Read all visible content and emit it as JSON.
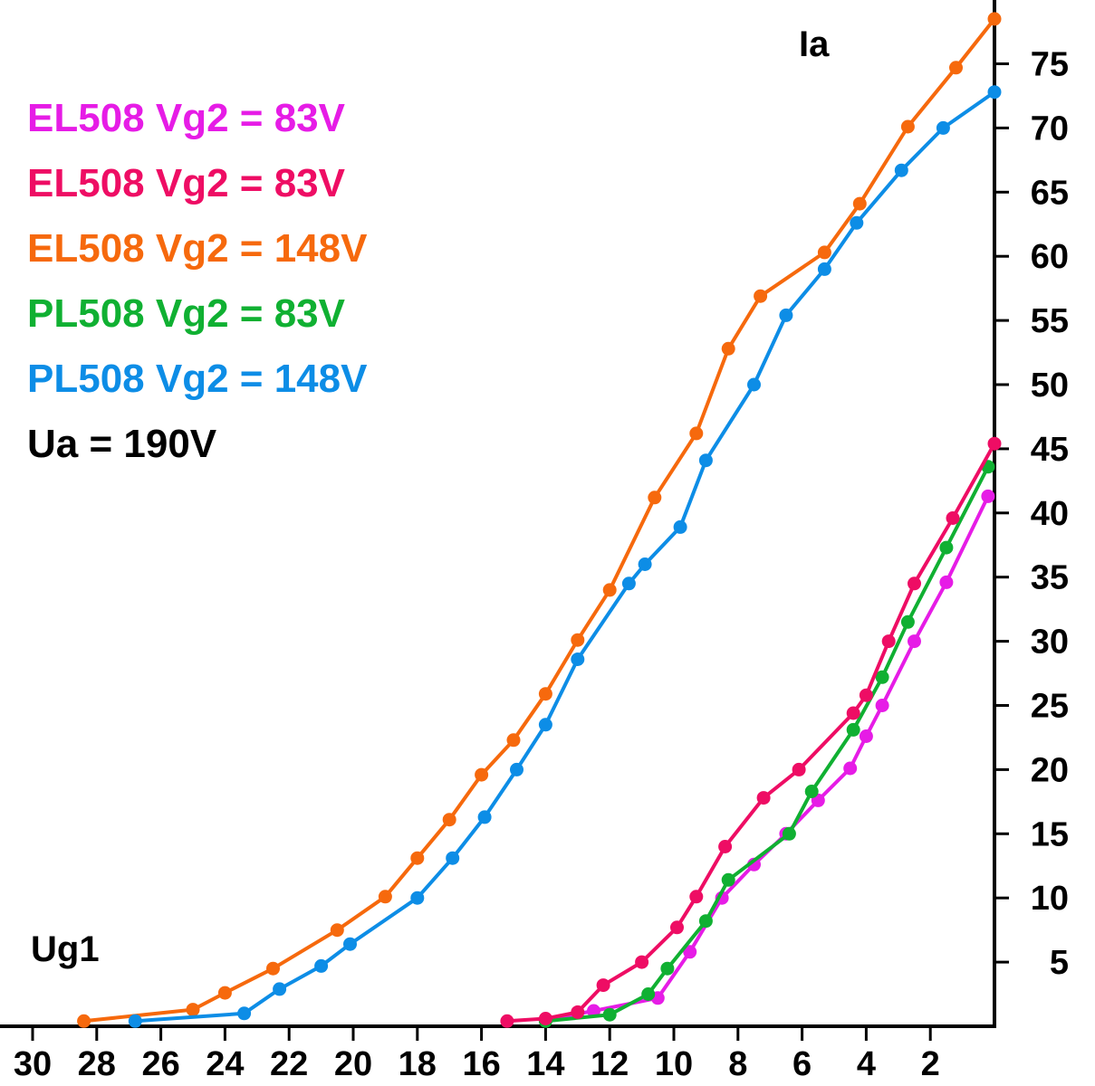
{
  "chart_data": {
    "type": "line",
    "title": "",
    "xlabel": "Ug1",
    "ylabel": "Ia",
    "x_axis_reversed": true,
    "xlim": [
      31,
      0
    ],
    "ylim": [
      0,
      78
    ],
    "x_ticks": [
      30,
      28,
      26,
      24,
      22,
      20,
      18,
      16,
      14,
      12,
      10,
      8,
      6,
      4,
      2
    ],
    "y_ticks": [
      5,
      10,
      15,
      20,
      25,
      30,
      35,
      40,
      45,
      50,
      55,
      60,
      65,
      70,
      75
    ],
    "annotation": "Ua = 190V",
    "series": [
      {
        "name": "EL508 Vg2 = 83V",
        "color": "#e61ce6",
        "points": [
          [
            14.0,
            0.5
          ],
          [
            12.5,
            1.2
          ],
          [
            10.5,
            2.2
          ],
          [
            9.5,
            5.8
          ],
          [
            8.5,
            10.0
          ],
          [
            7.5,
            12.6
          ],
          [
            6.5,
            15.0
          ],
          [
            5.5,
            17.6
          ],
          [
            4.5,
            20.1
          ],
          [
            4.0,
            22.6
          ],
          [
            3.5,
            25.0
          ],
          [
            2.5,
            30.0
          ],
          [
            1.5,
            34.6
          ],
          [
            0.2,
            41.3
          ]
        ]
      },
      {
        "name": "EL508 Vg2 = 83V",
        "color": "#ee0d64",
        "points": [
          [
            15.2,
            0.4
          ],
          [
            14.0,
            0.6
          ],
          [
            13.0,
            1.1
          ],
          [
            12.2,
            3.2
          ],
          [
            11.0,
            5.0
          ],
          [
            9.9,
            7.7
          ],
          [
            9.3,
            10.1
          ],
          [
            8.4,
            14.0
          ],
          [
            7.2,
            17.8
          ],
          [
            6.1,
            20.0
          ],
          [
            4.4,
            24.4
          ],
          [
            4.0,
            25.8
          ],
          [
            3.3,
            30.0
          ],
          [
            2.5,
            34.5
          ],
          [
            1.3,
            39.6
          ],
          [
            0.0,
            45.4
          ]
        ]
      },
      {
        "name": "EL508 Vg2 = 148V",
        "color": "#f6690d",
        "points": [
          [
            28.4,
            0.4
          ],
          [
            25.0,
            1.3
          ],
          [
            24.0,
            2.6
          ],
          [
            22.5,
            4.5
          ],
          [
            20.5,
            7.5
          ],
          [
            19.0,
            10.1
          ],
          [
            18.0,
            13.1
          ],
          [
            17.0,
            16.1
          ],
          [
            16.0,
            19.6
          ],
          [
            15.0,
            22.3
          ],
          [
            14.0,
            25.9
          ],
          [
            13.0,
            30.1
          ],
          [
            12.0,
            34.0
          ],
          [
            10.6,
            41.2
          ],
          [
            9.3,
            46.2
          ],
          [
            8.3,
            52.8
          ],
          [
            7.3,
            56.9
          ],
          [
            5.3,
            60.3
          ],
          [
            4.2,
            64.1
          ],
          [
            2.7,
            70.1
          ],
          [
            1.2,
            74.7
          ],
          [
            0.0,
            78.5
          ]
        ]
      },
      {
        "name": "PL508 Vg2 = 83V",
        "color": "#10b032",
        "points": [
          [
            14.0,
            0.4
          ],
          [
            12.0,
            0.9
          ],
          [
            10.8,
            2.5
          ],
          [
            10.2,
            4.5
          ],
          [
            9.0,
            8.2
          ],
          [
            8.3,
            11.4
          ],
          [
            6.4,
            15.0
          ],
          [
            5.7,
            18.3
          ],
          [
            4.4,
            23.1
          ],
          [
            3.5,
            27.2
          ],
          [
            2.7,
            31.5
          ],
          [
            1.5,
            37.3
          ],
          [
            0.2,
            43.6
          ]
        ]
      },
      {
        "name": "PL508 Vg2 = 148V",
        "color": "#0d8de6",
        "points": [
          [
            26.8,
            0.4
          ],
          [
            23.4,
            1.0
          ],
          [
            22.3,
            2.9
          ],
          [
            21.0,
            4.7
          ],
          [
            20.1,
            6.4
          ],
          [
            18.0,
            10.0
          ],
          [
            16.9,
            13.1
          ],
          [
            15.9,
            16.3
          ],
          [
            14.9,
            20.0
          ],
          [
            14.0,
            23.5
          ],
          [
            13.0,
            28.6
          ],
          [
            11.4,
            34.5
          ],
          [
            10.9,
            36.0
          ],
          [
            9.8,
            38.9
          ],
          [
            9.0,
            44.1
          ],
          [
            7.5,
            50.0
          ],
          [
            6.5,
            55.4
          ],
          [
            5.3,
            59.0
          ],
          [
            4.3,
            62.6
          ],
          [
            2.9,
            66.7
          ],
          [
            1.6,
            70.0
          ],
          [
            0.0,
            72.8
          ]
        ]
      }
    ]
  }
}
